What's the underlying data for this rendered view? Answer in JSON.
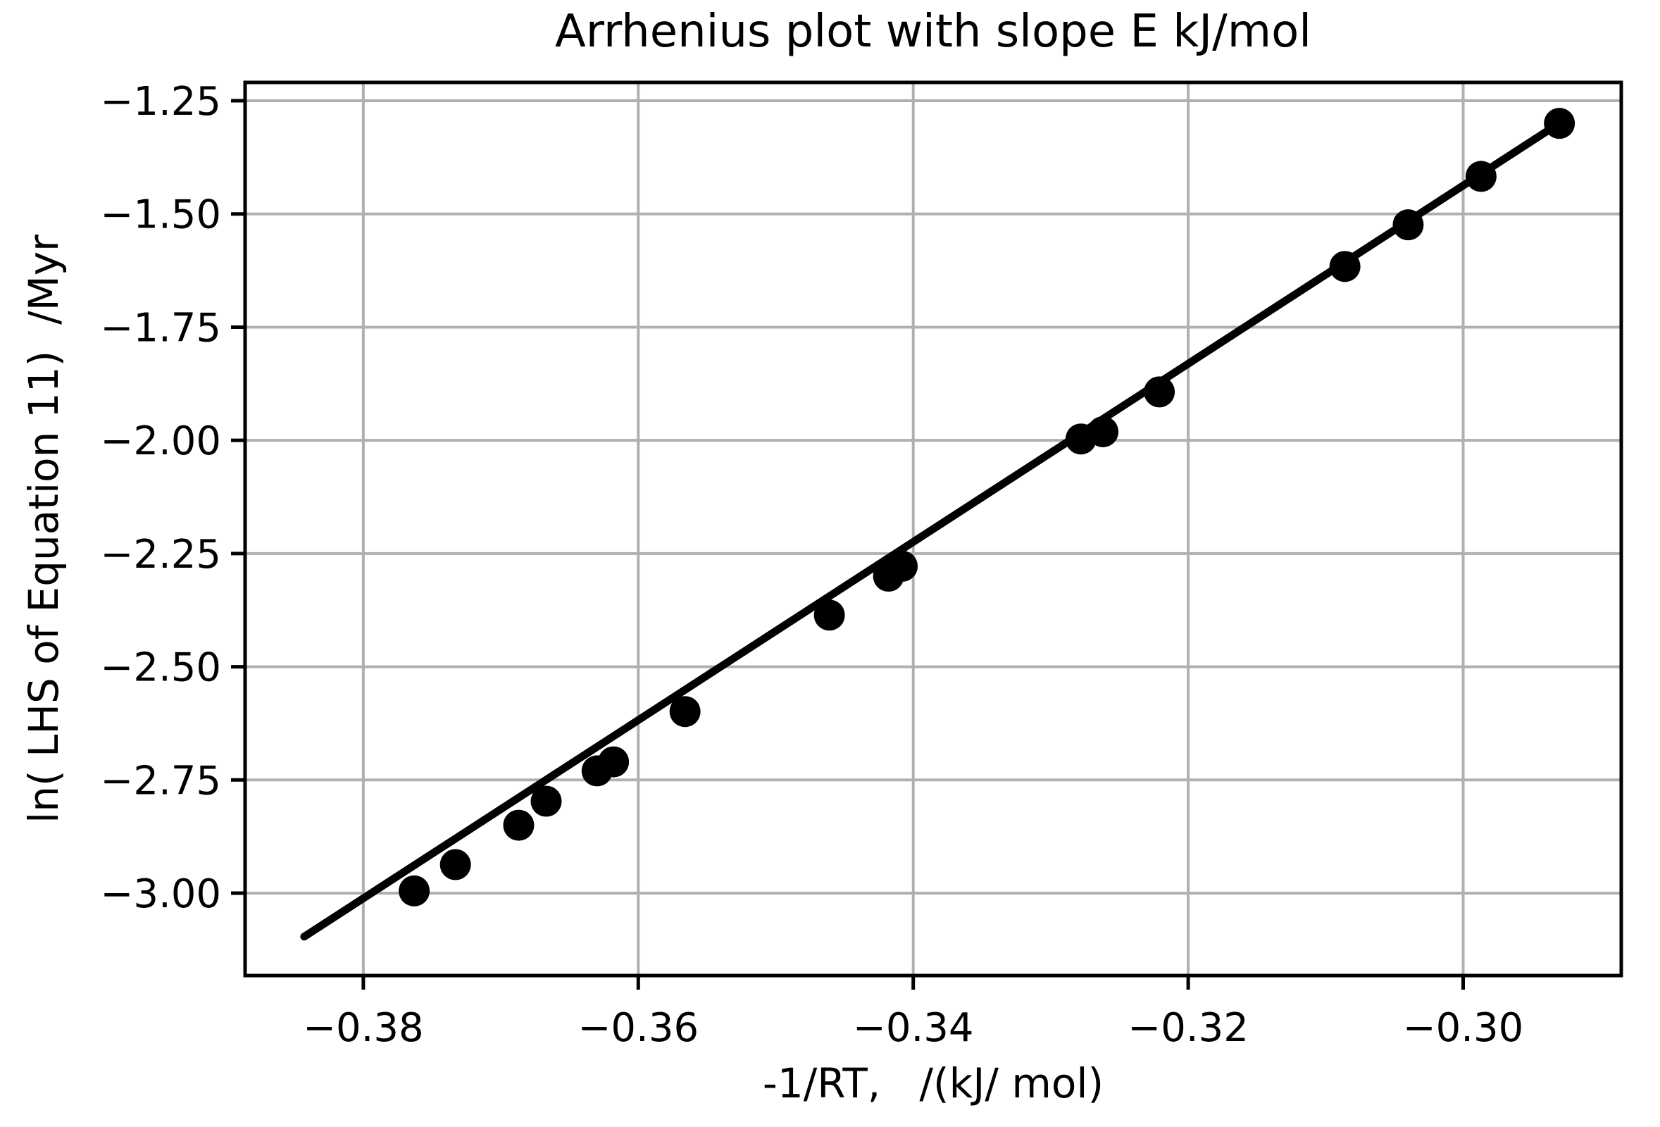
{
  "figure": {
    "background": "#ffffff",
    "text_color": "#000000"
  },
  "chart_data": {
    "type": "scatter",
    "title": "Arrhenius plot with slope E kJ/mol",
    "xlabel": "-1/RT,   /(kJ/ mol)",
    "ylabel": "ln( LHS of Equation 11)  /Myr",
    "xlim": [
      -0.3886,
      -0.2885
    ],
    "ylim": [
      -3.182,
      -1.2095
    ],
    "x_ticks": [
      -0.38,
      -0.36,
      -0.34,
      -0.32,
      -0.3
    ],
    "y_ticks": [
      -1.25,
      -1.5,
      -1.75,
      -2.0,
      -2.25,
      -2.5,
      -2.75,
      -3.0
    ],
    "tick_decimals": 2,
    "grid": true,
    "legend": "none",
    "grid_color": "#b0b0b0",
    "axis_color": "#000000",
    "marker_color": "#000000",
    "line_color": "#000000",
    "points": [
      [
        -0.3763,
        -2.995
      ],
      [
        -0.3733,
        -2.937
      ],
      [
        -0.3687,
        -2.85
      ],
      [
        -0.3667,
        -2.797
      ],
      [
        -0.363,
        -2.73
      ],
      [
        -0.3618,
        -2.71
      ],
      [
        -0.3566,
        -2.599
      ],
      [
        -0.3461,
        -2.386
      ],
      [
        -0.3418,
        -2.3
      ],
      [
        -0.3408,
        -2.278
      ],
      [
        -0.3278,
        -1.997
      ],
      [
        -0.3262,
        -1.981
      ],
      [
        -0.3221,
        -1.893
      ],
      [
        -0.3086,
        -1.616
      ],
      [
        -0.304,
        -1.524
      ],
      [
        -0.2987,
        -1.417
      ],
      [
        -0.293,
        -1.3
      ]
    ],
    "fit_line": {
      "x1": -0.3843,
      "y1": -3.096,
      "x2": -0.293,
      "y2": -1.2995,
      "slope_kj_per_mol": 19.7
    }
  }
}
